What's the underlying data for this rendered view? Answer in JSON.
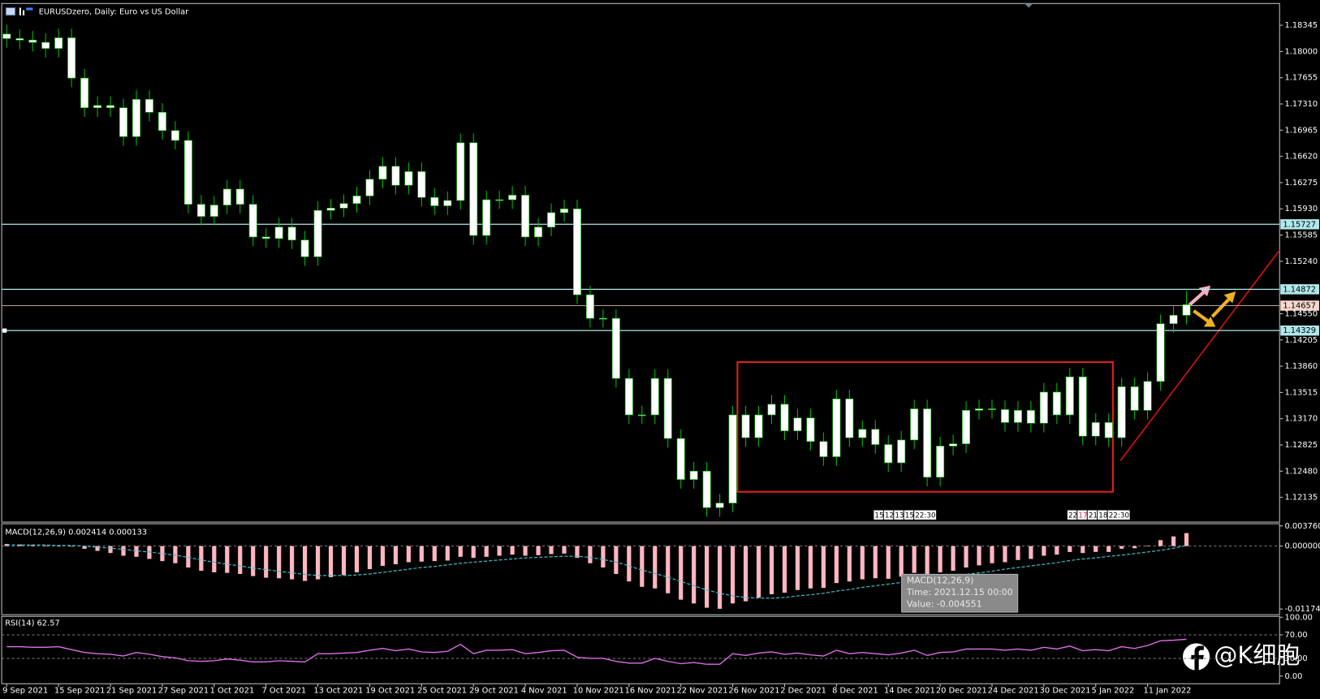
{
  "chart_data": [
    {
      "type": "candlestick",
      "title": "EURUSDzero, Daily:  Euro vs US Dollar",
      "categories": [
        "9 Sep 2021",
        null,
        null,
        null,
        "15 Sep 2021",
        null,
        null,
        null,
        "21 Sep 2021",
        null,
        null,
        null,
        "27 Sep 2021",
        null,
        null,
        null,
        "1 Oct 2021",
        null,
        null,
        null,
        "7 Oct 2021",
        null,
        null,
        null,
        "13 Oct 2021",
        null,
        null,
        null,
        "19 Oct 2021",
        null,
        null,
        null,
        "25 Oct 2021",
        null,
        null,
        null,
        "29 Oct 2021",
        null,
        null,
        null,
        "4 Nov 2021",
        null,
        null,
        null,
        "10 Nov 2021",
        null,
        null,
        null,
        "16 Nov 2021",
        null,
        null,
        null,
        "22 Nov 2021",
        null,
        null,
        null,
        "26 Nov 2021",
        null,
        null,
        null,
        "2 Dec 2021",
        null,
        null,
        null,
        "8 Dec 2021",
        null,
        null,
        null,
        "14 Dec 2021",
        null,
        null,
        null,
        "20 Dec 2021",
        null,
        null,
        null,
        "24 Dec 2021",
        null,
        null,
        null,
        "30 Dec 2021",
        null,
        null,
        null,
        "5 Jan 2022",
        null,
        null,
        null,
        "11 Jan 2022",
        null,
        null,
        null
      ],
      "open": [
        1.1823,
        1.1817,
        1.1815,
        1.1812,
        1.1804,
        1.1818,
        1.1765,
        1.1726,
        1.1729,
        1.1726,
        1.1688,
        1.1737,
        1.172,
        1.1696,
        1.1683,
        1.1599,
        1.1583,
        1.1598,
        1.1619,
        1.1599,
        1.1556,
        1.1554,
        1.1569,
        1.1552,
        1.153,
        1.1591,
        1.1594,
        1.16,
        1.161,
        1.1632,
        1.1649,
        1.1624,
        1.1642,
        1.1608,
        1.1597,
        1.1604,
        1.168,
        1.1558,
        1.1605,
        1.1605,
        1.1611,
        1.1556,
        1.1569,
        1.1588,
        1.1593,
        1.148,
        1.1449,
        1.1449,
        1.137,
        1.1322,
        1.1322,
        1.137,
        1.1291,
        1.1237,
        1.1248,
        1.12,
        1.1206,
        1.1322,
        1.1292,
        1.1322,
        1.1336,
        1.1301,
        1.1318,
        1.1287,
        1.1267,
        1.1343,
        1.1292,
        1.1303,
        1.1283,
        1.1259,
        1.1289,
        1.133,
        1.124,
        1.1281,
        1.1284,
        1.1328,
        1.133,
        1.1329,
        1.1312,
        1.1328,
        1.1311,
        1.1352,
        1.1322,
        1.1372,
        1.1294,
        1.1312,
        1.1292,
        1.1359,
        1.1328,
        1.1366,
        1.1442,
        1.1453
      ],
      "high": [
        1.1835,
        1.1829,
        1.1827,
        1.1824,
        1.183,
        1.183,
        1.1777,
        1.1741,
        1.1741,
        1.1738,
        1.1749,
        1.1749,
        1.1732,
        1.1708,
        1.1695,
        1.1611,
        1.161,
        1.1631,
        1.1631,
        1.1611,
        1.1568,
        1.1581,
        1.1581,
        1.1564,
        1.1603,
        1.1606,
        1.1612,
        1.1622,
        1.1644,
        1.1661,
        1.1661,
        1.1654,
        1.1654,
        1.162,
        1.1616,
        1.1692,
        1.1692,
        1.1617,
        1.1617,
        1.1623,
        1.1623,
        1.1581,
        1.16,
        1.1605,
        1.1605,
        1.1492,
        1.1461,
        1.1461,
        1.1382,
        1.1334,
        1.1382,
        1.1382,
        1.1303,
        1.126,
        1.126,
        1.1218,
        1.1334,
        1.1334,
        1.1334,
        1.1348,
        1.1348,
        1.133,
        1.133,
        1.1299,
        1.1355,
        1.1355,
        1.1315,
        1.1315,
        1.1295,
        1.1301,
        1.1342,
        1.1342,
        1.1293,
        1.1296,
        1.134,
        1.1342,
        1.1342,
        1.1341,
        1.134,
        1.134,
        1.1364,
        1.1364,
        1.1384,
        1.1384,
        1.1324,
        1.1324,
        1.1371,
        1.1371,
        1.1378,
        1.1454,
        1.1465,
        1.1485
      ],
      "low": [
        1.1805,
        1.1803,
        1.18,
        1.1792,
        1.1792,
        1.1753,
        1.1714,
        1.1714,
        1.1714,
        1.1676,
        1.1676,
        1.1708,
        1.1684,
        1.1671,
        1.1587,
        1.1571,
        1.1571,
        1.1586,
        1.1587,
        1.1544,
        1.1542,
        1.1542,
        1.154,
        1.1518,
        1.1518,
        1.1579,
        1.1582,
        1.1588,
        1.1598,
        1.162,
        1.1612,
        1.1612,
        1.1596,
        1.1585,
        1.1585,
        1.1592,
        1.1546,
        1.1546,
        1.1593,
        1.1593,
        1.1544,
        1.1544,
        1.1557,
        1.1576,
        1.1468,
        1.1437,
        1.1437,
        1.1358,
        1.131,
        1.131,
        1.131,
        1.1279,
        1.1225,
        1.1225,
        1.1188,
        1.1188,
        1.1194,
        1.128,
        1.128,
        1.131,
        1.1289,
        1.1289,
        1.1275,
        1.1255,
        1.1255,
        1.128,
        1.128,
        1.1271,
        1.1247,
        1.1247,
        1.1277,
        1.1228,
        1.1228,
        1.1269,
        1.1272,
        1.1316,
        1.1317,
        1.13,
        1.13,
        1.1299,
        1.1299,
        1.131,
        1.131,
        1.1282,
        1.1282,
        1.128,
        1.128,
        1.1316,
        1.1316,
        1.1354,
        1.143,
        1.1441
      ],
      "close": [
        1.1817,
        1.1815,
        1.1812,
        1.1804,
        1.1818,
        1.1765,
        1.1726,
        1.1729,
        1.1726,
        1.1688,
        1.1737,
        1.172,
        1.1696,
        1.1683,
        1.1599,
        1.1583,
        1.1598,
        1.1619,
        1.1599,
        1.1556,
        1.1554,
        1.1569,
        1.1552,
        1.153,
        1.1591,
        1.1594,
        1.16,
        1.161,
        1.1632,
        1.1649,
        1.1624,
        1.1642,
        1.1608,
        1.1597,
        1.1604,
        1.168,
        1.1558,
        1.1605,
        1.1605,
        1.1611,
        1.1556,
        1.1569,
        1.1588,
        1.1593,
        1.148,
        1.1449,
        1.1449,
        1.137,
        1.1322,
        1.1322,
        1.137,
        1.1291,
        1.1237,
        1.1248,
        1.12,
        1.1206,
        1.1322,
        1.1292,
        1.1322,
        1.1336,
        1.1301,
        1.1318,
        1.1287,
        1.1267,
        1.1343,
        1.1292,
        1.1303,
        1.1283,
        1.1259,
        1.1289,
        1.133,
        1.124,
        1.1281,
        1.1284,
        1.1328,
        1.133,
        1.1329,
        1.1312,
        1.1328,
        1.1311,
        1.1352,
        1.1322,
        1.1372,
        1.1294,
        1.1312,
        1.1292,
        1.1359,
        1.1328,
        1.1366,
        1.1442,
        1.1453,
        1.1467
      ],
      "ylim": [
        1.1181,
        1.1862
      ],
      "yticks": [
        1.18345,
        {
          "value": 1.18,
          "label": "1.18000"
        },
        1.17655,
        {
          "value": 1.1731,
          "label": "1.17310"
        },
        1.16965,
        {
          "value": 1.1662,
          "label": "1.16620"
        },
        1.16275,
        {
          "value": 1.1593,
          "label": "1.15930"
        },
        1.15585,
        {
          "value": 1.1524,
          "label": "1.15240"
        },
        {
          "value": 1.1455,
          "label": "1.14550"
        },
        1.14205,
        {
          "value": 1.1386,
          "label": "1.13860"
        },
        1.13515,
        {
          "value": 1.1317,
          "label": "1.13170"
        },
        1.12825,
        {
          "value": 1.1248,
          "label": "1.12480"
        },
        1.12135
      ],
      "hlines": [
        1.15727,
        1.14872,
        1.14329
      ],
      "last_price": 1.14657,
      "body_color": "#ffffff",
      "wick_color": "#00c000",
      "hline_color": "#b0e8ec",
      "session_labels": [
        [
          "15:",
          "12:",
          "13:",
          "15:",
          "22:30"
        ],
        [
          "22:",
          "17:",
          "21:",
          "18:",
          "22:30"
        ]
      ]
    },
    {
      "type": "macd",
      "label": "MACD(12,26,9) 0.002414 0.000133",
      "values": [
        0.0004,
        0.0003,
        0.0002,
        0.0001,
        0,
        -0.0001,
        -0.0005,
        -0.0009,
        -0.0013,
        -0.0018,
        -0.002,
        -0.0024,
        -0.0028,
        -0.0032,
        -0.004,
        -0.0046,
        -0.0049,
        -0.005,
        -0.0052,
        -0.0056,
        -0.0059,
        -0.006,
        -0.0062,
        -0.0065,
        -0.0062,
        -0.0058,
        -0.0054,
        -0.0049,
        -0.0043,
        -0.0037,
        -0.0034,
        -0.003,
        -0.0029,
        -0.0028,
        -0.0027,
        -0.002,
        -0.0022,
        -0.002,
        -0.0018,
        -0.0016,
        -0.0018,
        -0.0017,
        -0.0015,
        -0.0014,
        -0.0022,
        -0.0032,
        -0.004,
        -0.0052,
        -0.0066,
        -0.0076,
        -0.0079,
        -0.0088,
        -0.01,
        -0.0107,
        -0.0115,
        -0.0117,
        -0.0107,
        -0.0103,
        -0.0096,
        -0.009,
        -0.0087,
        -0.0082,
        -0.0079,
        -0.0078,
        -0.0069,
        -0.0066,
        -0.0062,
        -0.006,
        -0.0061,
        -0.0057,
        -0.005,
        -0.0052,
        -0.0049,
        -0.0046,
        -0.004,
        -0.0036,
        -0.0032,
        -0.003,
        -0.0026,
        -0.0024,
        -0.0018,
        -0.0016,
        -0.0011,
        -0.0013,
        -0.0011,
        -0.0011,
        -0.0005,
        -0.0004,
        0.0001,
        0.0011,
        0.0018,
        0.002414
      ],
      "signal": [
        0.0002,
        0.0002,
        0.0002,
        0.0002,
        0.0001,
        0.0001,
        0,
        -0.0002,
        -0.0004,
        -0.0006,
        -0.0009,
        -0.0011,
        -0.0014,
        -0.0017,
        -0.0021,
        -0.0026,
        -0.003,
        -0.0034,
        -0.0037,
        -0.0041,
        -0.0044,
        -0.0047,
        -0.005,
        -0.0053,
        -0.0055,
        -0.0055,
        -0.0055,
        -0.0054,
        -0.0052,
        -0.0049,
        -0.0046,
        -0.0043,
        -0.004,
        -0.0038,
        -0.0035,
        -0.0032,
        -0.003,
        -0.0028,
        -0.0026,
        -0.0024,
        -0.0022,
        -0.0021,
        -0.002,
        -0.0019,
        -0.0019,
        -0.0021,
        -0.0025,
        -0.003,
        -0.0037,
        -0.0045,
        -0.0051,
        -0.0058,
        -0.0066,
        -0.0074,
        -0.0082,
        -0.0088,
        -0.0093,
        -0.0096,
        -0.0097,
        -0.0097,
        -0.0096,
        -0.0093,
        -0.0091,
        -0.0088,
        -0.0084,
        -0.0081,
        -0.0077,
        -0.0074,
        -0.0071,
        -0.0068,
        -0.0065,
        -0.0062,
        -0.0059,
        -0.0057,
        -0.0053,
        -0.005,
        -0.0047,
        -0.0043,
        -0.004,
        -0.0037,
        -0.0034,
        -0.0031,
        -0.0027,
        -0.0024,
        -0.0022,
        -0.0019,
        -0.0017,
        -0.0014,
        -0.0011,
        -0.0008,
        -0.0004,
        0.000133
      ],
      "color": "#ffb6c1",
      "signal_color": "#3cb8c0",
      "ylim": [
        -0.0128,
        0.004
      ],
      "yticks": [
        {
          "value": 0.00376,
          "label": "0.003760"
        },
        {
          "value": 0,
          "label": "0.000000"
        },
        -0.011745
      ],
      "tooltip": [
        "MACD(12,26,9)",
        "Time: 2021.12.15 00:00",
        "Value: -0.004551"
      ]
    },
    {
      "type": "rsi",
      "label": "RSI(14) 62.57",
      "values": [
        50,
        50,
        49,
        49,
        50,
        45,
        40,
        38,
        37,
        34,
        40,
        37,
        33,
        31,
        26,
        25,
        26,
        29,
        27,
        24,
        24,
        26,
        25,
        24,
        38,
        38,
        39,
        40,
        44,
        47,
        43,
        46,
        41,
        40,
        42,
        54,
        38,
        44,
        44,
        45,
        38,
        40,
        43,
        44,
        32,
        30,
        30,
        25,
        22,
        22,
        30,
        25,
        21,
        23,
        20,
        20,
        38,
        35,
        39,
        41,
        37,
        39,
        36,
        34,
        44,
        38,
        40,
        38,
        36,
        39,
        44,
        35,
        40,
        41,
        46,
        46,
        46,
        44,
        46,
        44,
        49,
        46,
        51,
        43,
        45,
        43,
        50,
        47,
        52,
        60,
        61,
        62.57
      ],
      "color": "#e070e8",
      "ylim": [
        -13,
        100
      ],
      "yticks": [
        {
          "value": 100,
          "label": "100.00"
        },
        {
          "value": 70,
          "label": "70.00"
        },
        {
          "value": 30,
          "label": "30.00"
        },
        {
          "value": 0,
          "label": "0.00"
        }
      ]
    }
  ],
  "watermark": "@K细胞"
}
